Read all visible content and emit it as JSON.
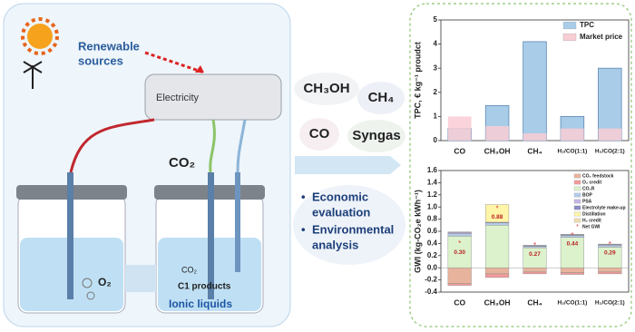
{
  "diagram": {
    "renewable": [
      "Renewable",
      "sources"
    ],
    "electricity": "Electricity",
    "co2_inlet": "CO₂",
    "o2": "O₂",
    "co2_cell": "CO₂",
    "c1_products": "C1 products",
    "ionic_liquids": "Ionic liquids",
    "products": [
      "CH₃OH",
      "CH₄",
      "CO",
      "Syngas"
    ],
    "bullets": [
      "Economic",
      "evaluation",
      "Environmental",
      "analysis"
    ]
  },
  "chart_data": [
    {
      "type": "bar",
      "stacked": false,
      "y_label": "TPC, € kg⁻¹ proudct",
      "categories": [
        "CO",
        "CH₃OH",
        "CH₄",
        "H₂/CO(1:1)",
        "H₂/CO(2:1)"
      ],
      "series": [
        {
          "name": "TPC",
          "color": "#a9cde9",
          "values": [
            0.5,
            1.45,
            4.1,
            1.0,
            3.0
          ]
        },
        {
          "name": "Market price",
          "color": "#f9cdd4",
          "values": [
            1.0,
            0.6,
            0.3,
            0.5,
            0.5
          ]
        }
      ],
      "ylim": [
        0,
        5
      ],
      "yticks": [
        0,
        1,
        2,
        3,
        4,
        5
      ],
      "legend": "top-right"
    },
    {
      "type": "bar",
      "stacked": true,
      "y_label": "GWI (kg-CO₂e kWh⁻¹)",
      "categories": [
        "CO",
        "CH₃OH",
        "CH₄",
        "H₂/CO(1:1)",
        "H₂/CO(2:1)"
      ],
      "series": [
        {
          "name": "CO₂ feedstock",
          "color": "#e8b39d",
          "values": [
            -0.26,
            -0.1,
            -0.07,
            -0.08,
            -0.07
          ]
        },
        {
          "name": "O₂ credit",
          "color": "#f19a9a",
          "values": [
            -0.03,
            -0.06,
            -0.03,
            -0.03,
            -0.03
          ]
        },
        {
          "name": "CO₂R",
          "color": "#dcf2cc",
          "values": [
            0.52,
            0.7,
            0.33,
            0.5,
            0.34
          ]
        },
        {
          "name": "BOP",
          "color": "#b3cbe9",
          "values": [
            0.04,
            0.04,
            0.02,
            0.03,
            0.03
          ]
        },
        {
          "name": "PSA",
          "color": "#c4b5e3",
          "values": [
            0.02,
            0,
            0.01,
            0.01,
            0.01
          ]
        },
        {
          "name": "Electrolyte make-up",
          "color": "#8c8cc4",
          "values": [
            0.01,
            0.01,
            0.01,
            0.01,
            0.01
          ]
        },
        {
          "name": "Distillation",
          "color": "#fff5a8",
          "values": [
            0,
            0.29,
            0,
            0,
            0
          ]
        },
        {
          "name": "H₂ credit",
          "color": "#f1ddb0",
          "values": [
            0,
            0,
            0,
            0,
            0
          ]
        }
      ],
      "net": {
        "name": "Net GWI",
        "color": "#e03a3a",
        "values": [
          0.3,
          0.88,
          0.27,
          0.44,
          0.29
        ],
        "value_labels": [
          "0.30",
          "0.88",
          "0.27",
          "0.44",
          "0.29"
        ]
      },
      "ylim": [
        -0.4,
        1.6
      ],
      "yticks": [
        {
          "value": -0.4,
          "label": "-0.4"
        },
        {
          "value": -0.2,
          "label": "-0.2"
        },
        {
          "value": 0,
          "label": "0.0"
        },
        {
          "value": 0.2,
          "label": "0.2"
        },
        {
          "value": 0.4,
          "label": "0.4"
        },
        {
          "value": 0.6,
          "label": "0.6"
        },
        {
          "value": 0.8,
          "label": "0.8"
        },
        {
          "value": 1.0,
          "label": "1.0"
        },
        {
          "value": 1.2,
          "label": "1.2"
        },
        {
          "value": 1.4,
          "label": "1.4"
        },
        {
          "value": 1.6,
          "label": "1.6"
        }
      ],
      "legend": "top-right"
    }
  ]
}
